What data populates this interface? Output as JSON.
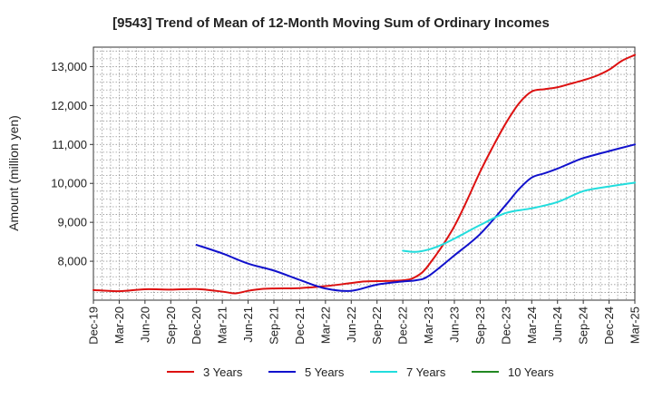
{
  "chart_data": {
    "type": "line",
    "title": "[9543]  Trend of Mean of 12-Month Moving Sum of Ordinary Incomes",
    "xlabel": "",
    "ylabel": "Amount (million yen)",
    "x_tick_labels": [
      "Dec-19",
      "Mar-20",
      "Jun-20",
      "Sep-20",
      "Dec-20",
      "Mar-21",
      "Jun-21",
      "Sep-21",
      "Dec-21",
      "Mar-22",
      "Jun-22",
      "Sep-22",
      "Dec-22",
      "Mar-23",
      "Jun-23",
      "Sep-23",
      "Dec-23",
      "Mar-24",
      "Jun-24",
      "Sep-24",
      "Dec-24",
      "Mar-25"
    ],
    "y_ticks": [
      8000,
      9000,
      10000,
      11000,
      12000,
      13000
    ],
    "y_tick_labels": [
      "8,000",
      "9,000",
      "10,000",
      "11,000",
      "12,000",
      "13,000"
    ],
    "ylim": [
      7000,
      13500
    ],
    "grid": true,
    "legend_position": "bottom",
    "series": [
      {
        "name": "3 Years",
        "color": "#dd1111",
        "points": [
          [
            0,
            7260
          ],
          [
            1,
            7230
          ],
          [
            2,
            7280
          ],
          [
            3,
            7270
          ],
          [
            4,
            7285
          ],
          [
            5,
            7220
          ],
          [
            5.5,
            7175
          ],
          [
            6,
            7240
          ],
          [
            6.5,
            7285
          ],
          [
            7,
            7300
          ],
          [
            8,
            7310
          ],
          [
            9,
            7360
          ],
          [
            10,
            7440
          ],
          [
            10.5,
            7480
          ],
          [
            11,
            7490
          ],
          [
            12,
            7510
          ],
          [
            12.5,
            7600
          ],
          [
            13,
            7900
          ],
          [
            14,
            8900
          ],
          [
            15,
            10300
          ],
          [
            15.5,
            10950
          ],
          [
            16,
            11550
          ],
          [
            16.5,
            12050
          ],
          [
            17,
            12360
          ],
          [
            17.5,
            12420
          ],
          [
            18,
            12470
          ],
          [
            18.5,
            12560
          ],
          [
            19,
            12650
          ],
          [
            19.5,
            12760
          ],
          [
            20,
            12920
          ],
          [
            20.5,
            13150
          ],
          [
            21,
            13300
          ]
        ]
      },
      {
        "name": "5 Years",
        "color": "#1111cc",
        "points": [
          [
            4,
            8420
          ],
          [
            5,
            8200
          ],
          [
            6,
            7940
          ],
          [
            7,
            7760
          ],
          [
            8,
            7520
          ],
          [
            9,
            7300
          ],
          [
            10,
            7240
          ],
          [
            11,
            7400
          ],
          [
            12,
            7480
          ],
          [
            12.5,
            7510
          ],
          [
            13,
            7620
          ],
          [
            14,
            8150
          ],
          [
            15,
            8700
          ],
          [
            16,
            9450
          ],
          [
            16.5,
            9850
          ],
          [
            17,
            10150
          ],
          [
            17.5,
            10260
          ],
          [
            18,
            10380
          ],
          [
            18.5,
            10520
          ],
          [
            19,
            10650
          ],
          [
            20,
            10830
          ],
          [
            21,
            11000
          ]
        ]
      },
      {
        "name": "7 Years",
        "color": "#22dddd",
        "points": [
          [
            12,
            8270
          ],
          [
            12.5,
            8240
          ],
          [
            13,
            8300
          ],
          [
            13.5,
            8420
          ],
          [
            14,
            8580
          ],
          [
            15,
            8930
          ],
          [
            16,
            9240
          ],
          [
            17,
            9360
          ],
          [
            18,
            9520
          ],
          [
            19,
            9800
          ],
          [
            20,
            9920
          ],
          [
            21,
            10020
          ]
        ]
      },
      {
        "name": "10 Years",
        "color": "#228822",
        "points": []
      }
    ]
  }
}
